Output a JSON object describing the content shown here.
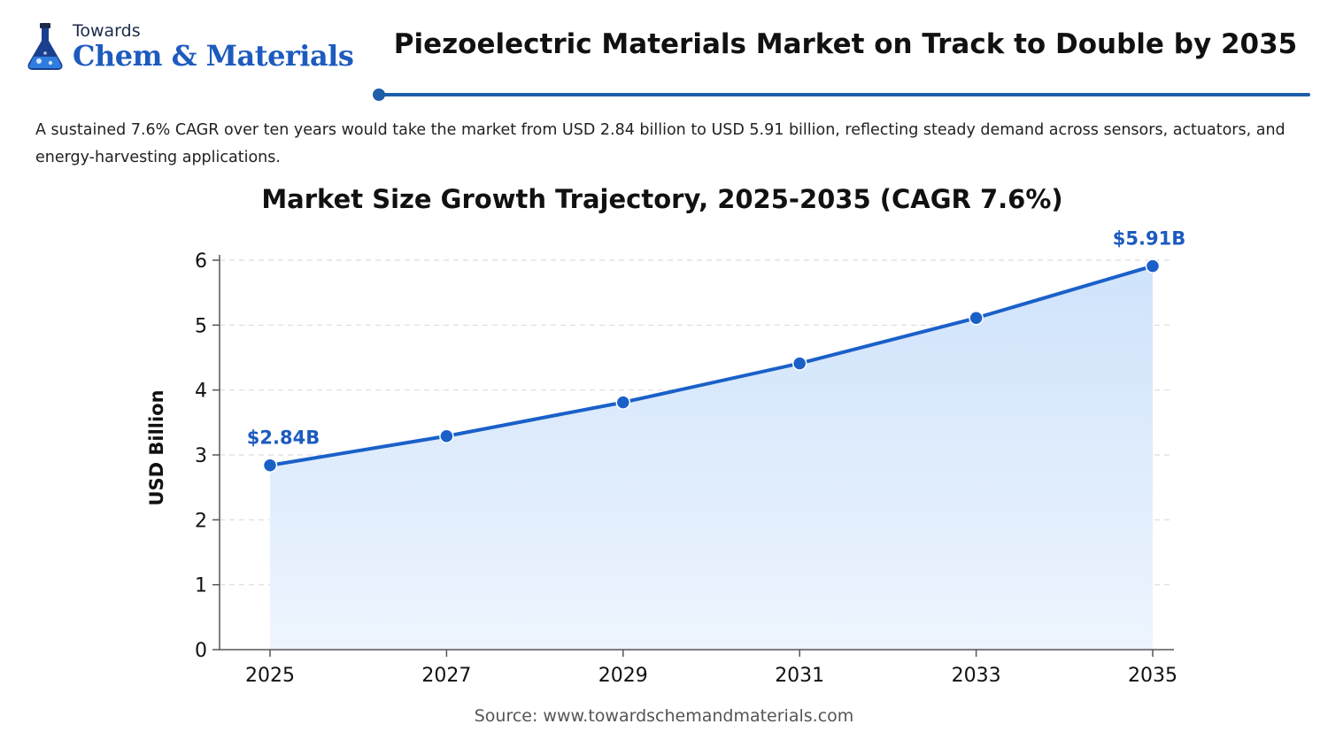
{
  "logo": {
    "small_text": "Towards",
    "big_text": "Chem & Materials",
    "icon": "flask-icon"
  },
  "headline": "Piezoelectric Materials Market on Track to Double by 2035",
  "description": "A sustained 7.6% CAGR over ten years would take the market from USD 2.84 billion to USD 5.91 billion, reflecting steady demand across sensors, actuators, and energy-harvesting applications.",
  "source": "Source: www.towardschemandmaterials.com",
  "colors": {
    "accent": "#1d5bbf",
    "line": "#1a60c9",
    "fill_top": "#cfe3fb",
    "fill_bottom": "#eef5fe",
    "rule": "#1e5ea8"
  },
  "chart_data": {
    "type": "area",
    "title": "Market Size Growth Trajectory, 2025-2035  (CAGR 7.6%)",
    "xlabel": "",
    "ylabel": "USD Billion",
    "x": [
      2025,
      2027,
      2029,
      2031,
      2033,
      2035
    ],
    "series": [
      {
        "values": [
          2.84,
          3.29,
          3.81,
          4.41,
          5.11,
          5.91
        ]
      }
    ],
    "xticks": [
      "2025",
      "2027",
      "2029",
      "2031",
      "2033",
      "2035"
    ],
    "yticks": [
      0,
      1,
      2,
      3,
      4,
      5,
      6
    ],
    "ylim": [
      0,
      6
    ],
    "grid": "horizontal dashed",
    "annotations": [
      {
        "x": 2025,
        "text": "$2.84B"
      },
      {
        "x": 2035,
        "text": "$5.91B"
      }
    ]
  }
}
